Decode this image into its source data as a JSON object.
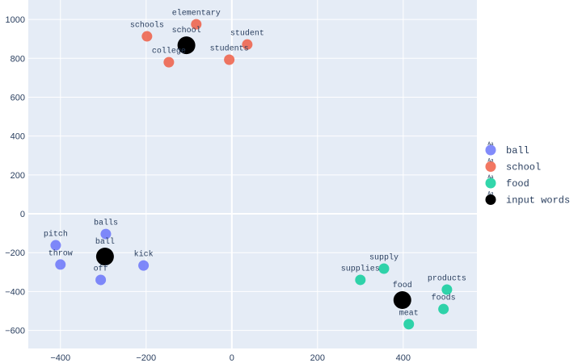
{
  "chart_data": {
    "type": "scatter",
    "title": "",
    "xlabel": "",
    "ylabel": "",
    "xlim": [
      -475,
      572
    ],
    "ylim": [
      -693,
      1100
    ],
    "xticks": [
      -400,
      -200,
      0,
      200,
      400
    ],
    "yticks": [
      -600,
      -400,
      -200,
      0,
      200,
      400,
      600,
      800,
      1000
    ],
    "grid": true,
    "legend_position": "right",
    "series": [
      {
        "name": "ball",
        "color": "#636efa",
        "opacity": 0.8,
        "size": "small",
        "points": [
          {
            "label": "pitch",
            "x": -411,
            "y": -162
          },
          {
            "label": "balls",
            "x": -294,
            "y": -104
          },
          {
            "label": "throw",
            "x": -400,
            "y": -261
          },
          {
            "label": "off",
            "x": -306,
            "y": -340
          },
          {
            "label": "kick",
            "x": -206,
            "y": -266
          }
        ]
      },
      {
        "name": "school",
        "color": "#ef553b",
        "opacity": 0.8,
        "size": "small",
        "points": [
          {
            "label": "schools",
            "x": -198,
            "y": 913
          },
          {
            "label": "elementary",
            "x": -83,
            "y": 975
          },
          {
            "label": "college",
            "x": -147,
            "y": 780
          },
          {
            "label": "students",
            "x": -6,
            "y": 793
          },
          {
            "label": "student",
            "x": 36,
            "y": 871
          }
        ]
      },
      {
        "name": "food",
        "color": "#00cc96",
        "opacity": 0.8,
        "size": "small",
        "points": [
          {
            "label": "supplies",
            "x": 300,
            "y": -340
          },
          {
            "label": "supply",
            "x": 355,
            "y": -282
          },
          {
            "label": "products",
            "x": 502,
            "y": -390
          },
          {
            "label": "foods",
            "x": 494,
            "y": -490
          },
          {
            "label": "meat",
            "x": 413,
            "y": -568
          }
        ]
      },
      {
        "name": "input words",
        "color": "#000000",
        "opacity": 1,
        "size": "large",
        "points": [
          {
            "label": "school",
            "x": -106,
            "y": 867
          },
          {
            "label": "ball",
            "x": -296,
            "y": -220
          },
          {
            "label": "food",
            "x": 398,
            "y": -444
          }
        ]
      }
    ],
    "legend_glyph_text": "Aa"
  }
}
